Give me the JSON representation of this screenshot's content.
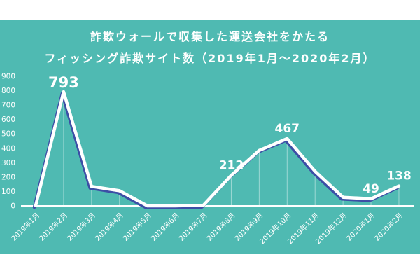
{
  "title": {
    "line1": "詐欺ウォールで収集した運送会社をかたる",
    "line2": "フィッシング詐欺サイト数（2019年1月～2020年2月）"
  },
  "colors": {
    "page_bg": "#FFFFFF",
    "panel_bg": "#4FBAB2",
    "text": "#FFFFFF",
    "series_line": "#FFFFFF",
    "series_shadow": "#3C4EA5",
    "axis_line": "#FFFFFF",
    "drop_line": "rgba(255,255,255,0.45)"
  },
  "chart_data": {
    "type": "line",
    "title": "詐欺ウォールで収集した運送会社をかたるフィッシング詐欺サイト数（2019年1月～2020年2月）",
    "categories": [
      "2019年1月",
      "2019年2月",
      "2019年3月",
      "2019年4月",
      "2019年5月",
      "2019年6月",
      "2019年7月",
      "2019年8月",
      "2019年9月",
      "2019年10月",
      "2019年11月",
      "2019年12月",
      "2020年1月",
      "2020年2月"
    ],
    "values": [
      2,
      793,
      135,
      105,
      0,
      0,
      4,
      212,
      385,
      467,
      240,
      60,
      49,
      138
    ],
    "data_labels": [
      {
        "category": "2019年2月",
        "value": 793,
        "emphasis": true
      },
      {
        "category": "2019年8月",
        "value": 212,
        "emphasis": false
      },
      {
        "category": "2019年10月",
        "value": 467,
        "emphasis": false
      },
      {
        "category": "2020年1月",
        "value": 49,
        "emphasis": false
      },
      {
        "category": "2020年2月",
        "value": 138,
        "emphasis": false
      }
    ],
    "y_ticks": [
      0,
      100,
      200,
      300,
      400,
      500,
      600,
      700,
      800,
      900
    ],
    "ylim": [
      0,
      900
    ],
    "xlabel": "",
    "ylabel": "",
    "grid": false,
    "legend": false,
    "x_label_rotation_deg": -45
  }
}
